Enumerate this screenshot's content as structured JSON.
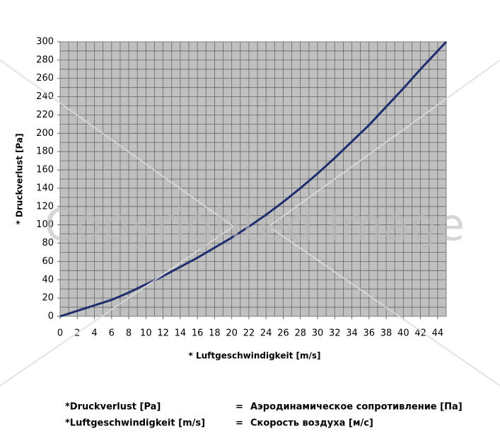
{
  "chart_data": {
    "type": "line",
    "x_label": "* Luftgeschwindigkeit [m/s]",
    "y_label": "* Druckverlust [Pa]",
    "x": [
      0,
      2,
      4,
      6,
      8,
      10,
      12,
      14,
      16,
      18,
      20,
      22,
      24,
      26,
      28,
      30,
      32,
      34,
      36,
      38,
      40,
      42,
      44,
      45
    ],
    "series": [
      {
        "color": "#1f2d6e",
        "values": [
          0,
          6,
          12,
          18,
          26,
          35,
          44,
          54,
          64,
          75,
          86,
          98,
          111,
          125,
          140,
          156,
          173,
          191,
          209,
          229,
          249,
          270,
          290,
          300
        ]
      }
    ],
    "xlim": [
      0,
      45
    ],
    "ylim": [
      0,
      300
    ],
    "xticks": [
      0,
      2,
      4,
      6,
      8,
      10,
      12,
      14,
      16,
      18,
      20,
      22,
      24,
      26,
      28,
      30,
      32,
      34,
      36,
      38,
      40,
      42,
      44
    ],
    "yticks": [
      0,
      20,
      40,
      60,
      80,
      100,
      120,
      140,
      160,
      180,
      200,
      220,
      240,
      260,
      280,
      300
    ],
    "x_grid": [
      0,
      1,
      2,
      3,
      4,
      5,
      6,
      7,
      8,
      9,
      10,
      11,
      12,
      13,
      14,
      15,
      16,
      17,
      18,
      19,
      20,
      21,
      22,
      23,
      24,
      25,
      26,
      27,
      28,
      29,
      30,
      31,
      32,
      33,
      34,
      35,
      36,
      37,
      38,
      39,
      40,
      41,
      42,
      43,
      44,
      45
    ],
    "y_grid": [
      0,
      10,
      20,
      30,
      40,
      50,
      60,
      70,
      80,
      90,
      100,
      110,
      120,
      130,
      140,
      150,
      160,
      170,
      180,
      190,
      200,
      210,
      220,
      230,
      240,
      250,
      260,
      270,
      280,
      290,
      300
    ],
    "plot_background": "#c0c0c0",
    "watermark": "Copyrighted Image",
    "legend_rows": [
      {
        "term": "*Druckverlust [Pa]",
        "eq": "=",
        "translation": "Аэродинамическое сопротивление [Па]"
      },
      {
        "term": "*Luftgeschwindigkeit [m/s]",
        "eq": "=",
        "translation": "Скорость воздуха [м/с]"
      }
    ]
  }
}
